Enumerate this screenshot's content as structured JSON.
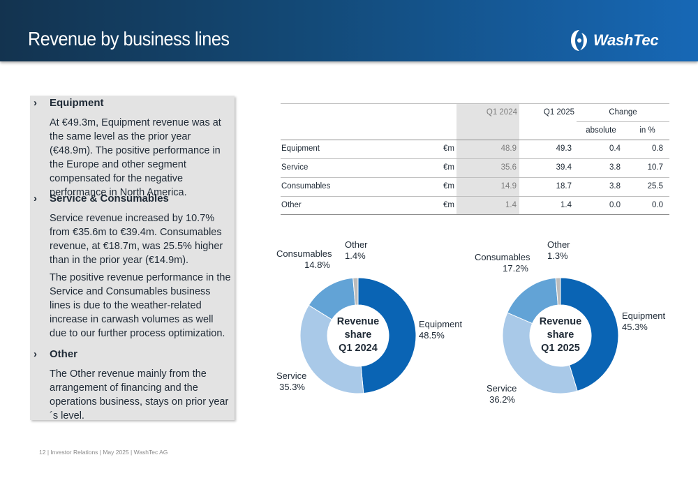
{
  "header": {
    "title": "Revenue by business lines",
    "logo_text": "WashTec"
  },
  "panel": {
    "sections": [
      {
        "heading": "Equipment",
        "paragraphs": [
          "At €49.3m, Equipment revenue was at the same level as the prior year (€48.9m). The positive performance in the Europe and other segment compensated for the negative performance in North America."
        ]
      },
      {
        "heading": "Service & Consumables",
        "paragraphs": [
          "Service revenue increased by 10.7% from €35.6m to €39.4m. Consumables revenue, at €18.7m, was 25.5% higher than in the prior year (€14.9m).",
          "The positive revenue performance in the Service and Consumables business lines is due to the weather-related increase in carwash volumes as well due to our further process optimization."
        ]
      },
      {
        "heading": "Other",
        "paragraphs": [
          "The Other revenue mainly from the arrangement of financing and the operations business, stays on prior year´s level."
        ]
      }
    ]
  },
  "table": {
    "headers": {
      "q1_2024": "Q1 2024",
      "q1_2025": "Q1 2025",
      "change": "Change",
      "absolute": "absolute",
      "in_pct": "in %"
    },
    "rows": [
      {
        "label": "Equipment",
        "unit": "€m",
        "q1_2024": "48.9",
        "q1_2025": "49.3",
        "absolute": "0.4",
        "pct": "0.8"
      },
      {
        "label": "Service",
        "unit": "€m",
        "q1_2024": "35.6",
        "q1_2025": "39.4",
        "absolute": "3.8",
        "pct": "10.7"
      },
      {
        "label": "Consumables",
        "unit": "€m",
        "q1_2024": "14.9",
        "q1_2025": "18.7",
        "absolute": "3.8",
        "pct": "25.5"
      },
      {
        "label": "Other",
        "unit": "€m",
        "q1_2024": "1.4",
        "q1_2025": "1.4",
        "absolute": "0.0",
        "pct": "0.0"
      }
    ]
  },
  "colors": {
    "equipment": "#0a64b4",
    "service": "#a9c9e8",
    "consumables": "#62a3d6",
    "other": "#bcbcbc"
  },
  "chart_data": [
    {
      "type": "pie",
      "title": "Revenue share Q1 2024",
      "title_lines": [
        "Revenue",
        "share",
        "Q1 2024"
      ],
      "slices": [
        {
          "label": "Equipment",
          "value": 48.5,
          "display": "48.5%"
        },
        {
          "label": "Service",
          "value": 35.3,
          "display": "35.3%"
        },
        {
          "label": "Consumables",
          "value": 14.8,
          "display": "14.8%"
        },
        {
          "label": "Other",
          "value": 1.4,
          "display": "1.4%"
        }
      ]
    },
    {
      "type": "pie",
      "title": "Revenue share Q1 2025",
      "title_lines": [
        "Revenue",
        "share",
        "Q1 2025"
      ],
      "slices": [
        {
          "label": "Equipment",
          "value": 45.3,
          "display": "45.3%"
        },
        {
          "label": "Service",
          "value": 36.2,
          "display": "36.2%"
        },
        {
          "label": "Consumables",
          "value": 17.2,
          "display": "17.2%"
        },
        {
          "label": "Other",
          "value": 1.3,
          "display": "1.3%"
        }
      ]
    }
  ],
  "footer": {
    "text": "12 |  Investor Relations | May 2025 | WashTec AG"
  }
}
